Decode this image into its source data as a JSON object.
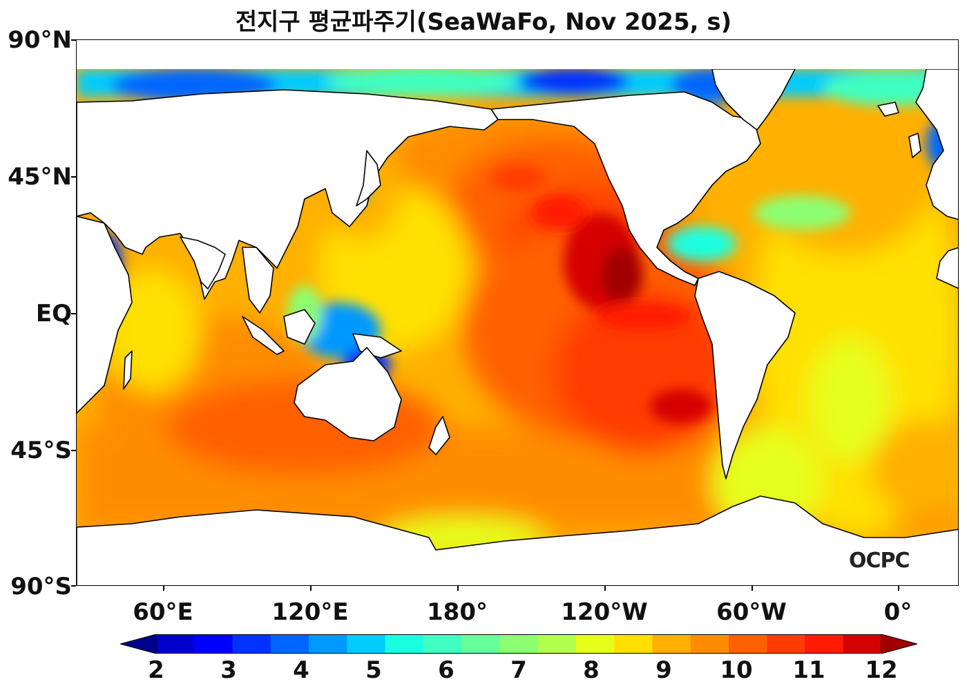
{
  "title": "전지구 평균파주기(SeaWaFo, Nov 2025, s)",
  "watermark": "OCPC",
  "lat_labels": [
    "90°N",
    "45°N",
    "EQ",
    "45°S",
    "90°S"
  ],
  "lon_labels": [
    "60°E",
    "120°E",
    "180°",
    "120°W",
    "60°W",
    "0°"
  ],
  "colorbar": {
    "ticks": [
      "2",
      "3",
      "4",
      "5",
      "6",
      "7",
      "8",
      "9",
      "10",
      "11",
      "12"
    ],
    "colors": [
      "#00008b",
      "#0000cd",
      "#0000ff",
      "#0033ff",
      "#0066ff",
      "#0099ff",
      "#00ccff",
      "#1affe0",
      "#40ffc0",
      "#66ff99",
      "#8cff73",
      "#b3ff4d",
      "#e6ff1a",
      "#ffe000",
      "#ffb000",
      "#ff8c00",
      "#ff6000",
      "#ff3c00",
      "#ff1a00",
      "#d40000",
      "#a00000"
    ],
    "extend": "both"
  },
  "land_color": "#ffffff",
  "ocean_base_color": "#ffb000"
}
